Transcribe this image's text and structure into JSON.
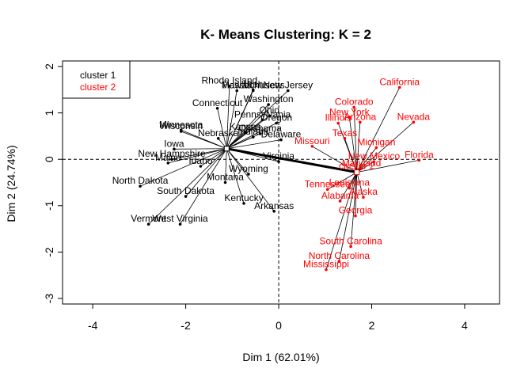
{
  "chart_data": {
    "type": "scatter",
    "title": "K- Means Clustering: K = 2",
    "xlabel": "Dim 1 (62.01%)",
    "ylabel": "Dim 2 (24.74%)",
    "xlim": [
      -4.65,
      4.75
    ],
    "ylim": [
      -3.12,
      2.12
    ],
    "xticks": [
      -4,
      -2,
      0,
      2,
      4
    ],
    "yticks": [
      -3,
      -2,
      -1,
      0,
      1,
      2
    ],
    "xtick_labels": [
      "-4",
      "-2",
      "0",
      "2",
      "4"
    ],
    "ytick_labels": [
      "-3",
      "-2",
      "-1",
      "0",
      "1",
      "2"
    ],
    "legend": [
      {
        "label": "cluster 1",
        "color": "#000000"
      },
      {
        "label": "cluster 2",
        "color": "#FF0000"
      }
    ],
    "legend_position": "top-left",
    "series": [
      {
        "name": "cluster 1",
        "color": "#000000",
        "centroid": [
          -1.12,
          0.23
        ],
        "centroid_label": "",
        "points": [
          {
            "label": "Hawaii",
            "x": -0.9,
            "y": 1.48
          },
          {
            "label": "Rhode Island",
            "x": -1.06,
            "y": 1.58
          },
          {
            "label": "Massachusetts",
            "x": -0.55,
            "y": 1.48
          },
          {
            "label": "Utah",
            "x": -0.55,
            "y": 1.5
          },
          {
            "label": "New Jersey",
            "x": 0.2,
            "y": 1.48
          },
          {
            "label": "Connecticut",
            "x": -1.32,
            "y": 1.1
          },
          {
            "label": "Washington",
            "x": -0.22,
            "y": 1.18
          },
          {
            "label": "Ohio",
            "x": -0.2,
            "y": 0.94
          },
          {
            "label": "Pennsylvania",
            "x": -0.35,
            "y": 0.85
          },
          {
            "label": "Oregon",
            "x": -0.05,
            "y": 0.78
          },
          {
            "label": "Minnesota",
            "x": -2.1,
            "y": 0.63
          },
          {
            "label": "Wisconsin",
            "x": -2.1,
            "y": 0.6
          },
          {
            "label": "Kansas",
            "x": -0.72,
            "y": 0.58
          },
          {
            "label": "Oklahoma",
            "x": -0.4,
            "y": 0.55
          },
          {
            "label": "Indiana",
            "x": -0.55,
            "y": 0.48
          },
          {
            "label": "Delaware",
            "x": 0.05,
            "y": 0.42
          },
          {
            "label": "Nebraska",
            "x": -1.3,
            "y": 0.45
          },
          {
            "label": "Iowa",
            "x": -2.25,
            "y": 0.22
          },
          {
            "label": "New Hampshire",
            "x": -2.3,
            "y": 0.0
          },
          {
            "label": "Maine",
            "x": -2.38,
            "y": -0.08
          },
          {
            "label": "Idaho",
            "x": -1.68,
            "y": -0.15
          },
          {
            "label": "Virginia",
            "x": 0.0,
            "y": -0.05
          },
          {
            "label": "Wyoming",
            "x": -0.65,
            "y": -0.32
          },
          {
            "label": "Montana",
            "x": -1.15,
            "y": -0.5
          },
          {
            "label": "North Dakota",
            "x": -2.98,
            "y": -0.58
          },
          {
            "label": "South Dakota",
            "x": -2.0,
            "y": -0.8
          },
          {
            "label": "Kentucky",
            "x": -0.75,
            "y": -0.95
          },
          {
            "label": "Arkansas",
            "x": -0.1,
            "y": -1.12
          },
          {
            "label": "Vermont",
            "x": -2.8,
            "y": -1.4
          },
          {
            "label": "West Virginia",
            "x": -2.12,
            "y": -1.4
          }
        ]
      },
      {
        "name": "cluster 2",
        "color": "#FF0000",
        "centroid": [
          1.68,
          -0.28
        ],
        "centroid_label": "cluster 2",
        "points": [
          {
            "label": "California",
            "x": 2.6,
            "y": 1.55
          },
          {
            "label": "Colorado",
            "x": 1.62,
            "y": 1.12
          },
          {
            "label": "Nevada",
            "x": 2.9,
            "y": 0.8
          },
          {
            "label": "New York",
            "x": 1.52,
            "y": 0.9
          },
          {
            "label": "Arizona",
            "x": 1.75,
            "y": 0.8
          },
          {
            "label": "Illinois",
            "x": 1.28,
            "y": 0.78
          },
          {
            "label": "Texas",
            "x": 1.42,
            "y": 0.45
          },
          {
            "label": "Missouri",
            "x": 0.72,
            "y": 0.28
          },
          {
            "label": "Michigan",
            "x": 2.1,
            "y": 0.25
          },
          {
            "label": "Florida",
            "x": 3.02,
            "y": -0.02
          },
          {
            "label": "New Mexico",
            "x": 2.05,
            "y": -0.05
          },
          {
            "label": "Maryland",
            "x": 1.78,
            "y": -0.2
          },
          {
            "label": "Tennessee",
            "x": 1.05,
            "y": -0.65
          },
          {
            "label": "Louisiana",
            "x": 1.52,
            "y": -0.62
          },
          {
            "label": "Alaska",
            "x": 1.82,
            "y": -0.82
          },
          {
            "label": "Alabama",
            "x": 1.32,
            "y": -0.9
          },
          {
            "label": "Georgia",
            "x": 1.65,
            "y": -1.22
          },
          {
            "label": "South Carolina",
            "x": 1.55,
            "y": -1.88
          },
          {
            "label": "North Carolina",
            "x": 1.3,
            "y": -2.2
          },
          {
            "label": "Mississippi",
            "x": 1.02,
            "y": -2.38
          }
        ]
      }
    ]
  }
}
